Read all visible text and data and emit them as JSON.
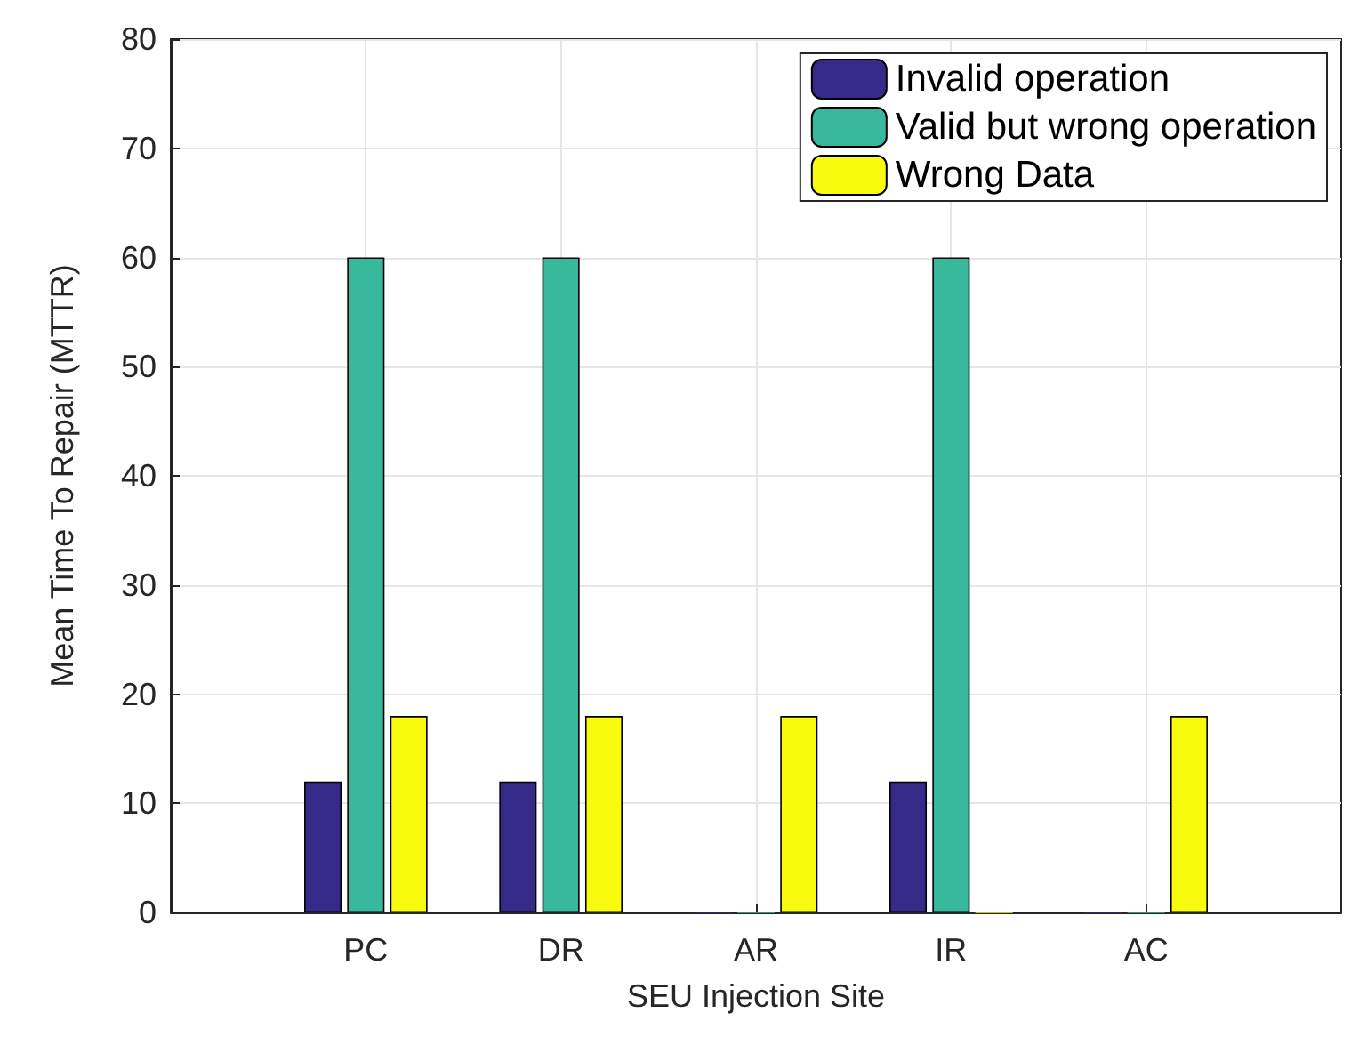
{
  "chart_data": {
    "type": "bar",
    "xlabel": "SEU Injection Site",
    "ylabel": "Mean Time To Repair (MTTR)",
    "categories": [
      "PC",
      "DR",
      "AR",
      "IR",
      "AC"
    ],
    "ylim": [
      0,
      80
    ],
    "yticks": [
      0,
      10,
      20,
      30,
      40,
      50,
      60,
      70,
      80
    ],
    "series": [
      {
        "name": "Invalid operation",
        "color": "#352a87",
        "values": [
          12,
          12,
          0,
          12,
          0
        ]
      },
      {
        "name": "Valid but wrong operation",
        "color": "#38b99e",
        "values": [
          60,
          60,
          0,
          60,
          0
        ]
      },
      {
        "name": "Wrong Data",
        "color": "#f9fb0e",
        "values": [
          18,
          18,
          18,
          0,
          18
        ]
      }
    ],
    "grid": true,
    "legend": "top right"
  }
}
